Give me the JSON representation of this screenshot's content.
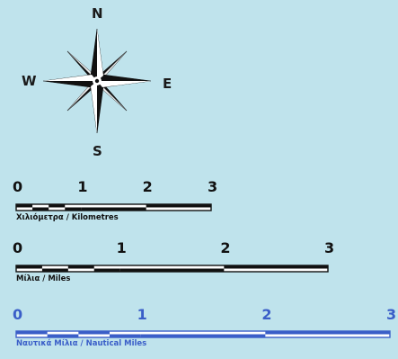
{
  "compass": {
    "north": "N",
    "south": "S",
    "east": "E",
    "west": "W",
    "icon": "compass-rose-icon"
  },
  "scales": [
    {
      "id": "kilometres",
      "labels": [
        "0",
        "1",
        "2",
        "3"
      ],
      "caption": "Χιλιόμετρα / Kilometres",
      "color": "#111111",
      "fill": "#ffffff"
    },
    {
      "id": "miles",
      "labels": [
        "0",
        "1",
        "2",
        "3"
      ],
      "caption": "Μίλια / Miles",
      "color": "#111111",
      "fill": "#ffffff"
    },
    {
      "id": "nautical-miles",
      "labels": [
        "0",
        "1",
        "2",
        "3"
      ],
      "caption": "Ναυτικά Μίλια / Nautical Miles",
      "color": "#3a5ec8",
      "fill": "#ffffff"
    }
  ],
  "colors": {
    "background": "#bfe3ec",
    "dark": "#111111",
    "blue": "#3a5ec8"
  }
}
